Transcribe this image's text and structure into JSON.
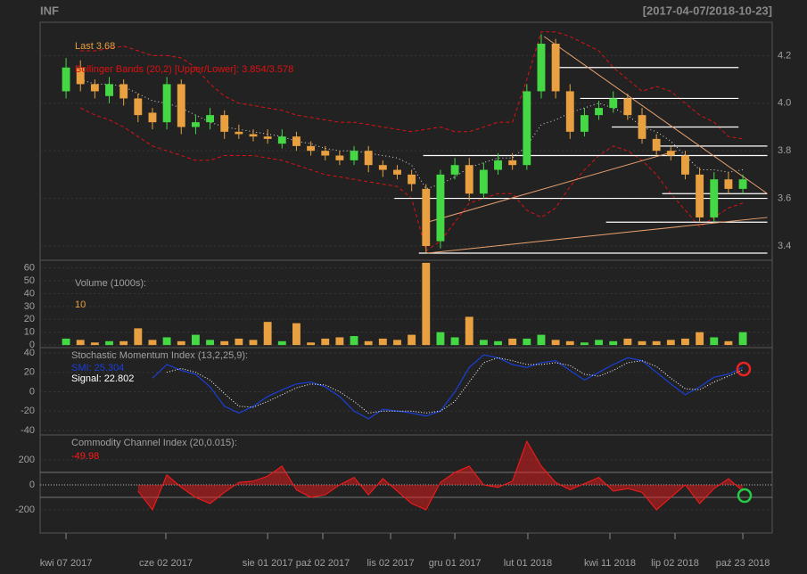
{
  "chart_data": {
    "type": "candlestick",
    "title": "INF",
    "subtitle": "[2017-04-07/2018-10-23]",
    "xlim": [
      -1.8,
      49.04
    ],
    "xticks": [
      {
        "value": 0,
        "label": "kwi 07 2017"
      },
      {
        "value": 6.93,
        "label": "cze 02 2017"
      },
      {
        "value": 14,
        "label": "sie 01 2017"
      },
      {
        "value": 17.83,
        "label": "paź 02 2017"
      },
      {
        "value": 22.54,
        "label": "lis 02 2017"
      },
      {
        "value": 27,
        "label": "gru 01 2017"
      },
      {
        "value": 32.07,
        "label": "lut 01 2018"
      },
      {
        "value": 37.77,
        "label": "kwi 11 2018"
      },
      {
        "value": 42.29,
        "label": "lip 02 2018"
      },
      {
        "value": 47,
        "label": "paź 23 2018"
      }
    ],
    "grid": true,
    "price": {
      "ylim": [
        3.34,
        4.34
      ],
      "yticks": [
        3.4,
        3.6,
        3.8,
        {
          "value": 4,
          "label": "4.0"
        },
        4.2
      ],
      "up_color": "#44d844",
      "down_color": "#e8a040",
      "last_label": "Last 3.68",
      "bb_label": "Bollinger Bands (20,2) [Upper/Lower]: 3.854/3.578",
      "bb_color": "#dd1111",
      "mid_color": "#dddddd",
      "open": [
        4.05,
        4.15,
        4.08,
        4.03,
        4.08,
        4.02,
        3.96,
        3.92,
        4.08,
        3.9,
        3.92,
        3.95,
        3.88,
        3.87,
        3.86,
        3.83,
        3.86,
        3.82,
        3.8,
        3.78,
        3.76,
        3.8,
        3.74,
        3.72,
        3.7,
        3.64,
        3.42,
        3.7,
        3.74,
        3.62,
        3.72,
        3.76,
        3.74,
        4.05,
        4.25,
        4.05,
        3.88,
        3.95,
        3.98,
        4.02,
        3.95,
        3.85,
        3.8,
        3.78,
        3.7,
        3.52,
        3.68,
        3.64
      ],
      "high": [
        4.19,
        4.18,
        4.1,
        4.11,
        4.1,
        4.04,
        3.98,
        4.11,
        4.1,
        3.95,
        3.98,
        3.97,
        3.91,
        3.89,
        3.89,
        3.89,
        3.88,
        3.84,
        3.82,
        3.8,
        3.82,
        3.82,
        3.76,
        3.74,
        3.72,
        3.66,
        3.72,
        3.77,
        3.77,
        3.75,
        3.79,
        3.79,
        4.08,
        4.29,
        4.27,
        4.08,
        3.98,
        4.01,
        4.05,
        4.04,
        3.98,
        3.87,
        3.82,
        3.8,
        3.73,
        3.71,
        3.71,
        3.7
      ],
      "low": [
        4.02,
        4.05,
        4.02,
        4.0,
        3.99,
        3.92,
        3.89,
        3.89,
        3.87,
        3.87,
        3.89,
        3.85,
        3.85,
        3.84,
        3.83,
        3.81,
        3.8,
        3.78,
        3.76,
        3.74,
        3.74,
        3.71,
        3.69,
        3.68,
        3.63,
        3.37,
        3.39,
        3.68,
        3.59,
        3.6,
        3.7,
        3.72,
        3.72,
        4.02,
        4.02,
        3.85,
        3.86,
        3.93,
        3.96,
        3.93,
        3.83,
        3.78,
        3.76,
        3.68,
        3.5,
        3.5,
        3.62,
        3.62
      ],
      "close": [
        4.15,
        4.08,
        4.05,
        4.08,
        4.02,
        3.95,
        3.92,
        4.08,
        3.9,
        3.92,
        3.95,
        3.88,
        3.87,
        3.86,
        3.85,
        3.86,
        3.82,
        3.8,
        3.78,
        3.76,
        3.8,
        3.74,
        3.72,
        3.7,
        3.66,
        3.4,
        3.7,
        3.74,
        3.62,
        3.72,
        3.76,
        3.74,
        4.05,
        4.25,
        4.05,
        3.88,
        3.95,
        3.98,
        4.02,
        3.95,
        3.85,
        3.8,
        3.78,
        3.7,
        3.52,
        3.68,
        3.64,
        3.68
      ],
      "bb_upper": [
        null,
        4.22,
        4.22,
        4.23,
        4.24,
        4.22,
        4.2,
        4.2,
        4.19,
        4.15,
        4.08,
        4.03,
        4.0,
        3.99,
        3.98,
        3.97,
        3.95,
        3.94,
        3.93,
        3.92,
        3.92,
        3.91,
        3.9,
        3.89,
        3.88,
        3.89,
        3.9,
        3.88,
        3.88,
        3.9,
        3.92,
        3.92,
        4.1,
        4.3,
        4.3,
        4.28,
        4.25,
        4.22,
        4.15,
        4.1,
        4.05,
        4.07,
        4.05,
        4.0,
        3.95,
        3.92,
        3.86,
        3.85
      ],
      "bb_lower": [
        null,
        3.98,
        3.95,
        3.93,
        3.9,
        3.86,
        3.82,
        3.8,
        3.78,
        3.76,
        3.76,
        3.78,
        3.78,
        3.78,
        3.77,
        3.76,
        3.74,
        3.72,
        3.7,
        3.69,
        3.68,
        3.67,
        3.66,
        3.65,
        3.6,
        3.38,
        3.42,
        3.5,
        3.58,
        3.6,
        3.62,
        3.62,
        3.55,
        3.52,
        3.56,
        3.65,
        3.72,
        3.78,
        3.82,
        3.8,
        3.76,
        3.7,
        3.62,
        3.55,
        3.48,
        3.52,
        3.56,
        3.58
      ],
      "bb_mid": [
        null,
        4.1,
        4.08,
        4.08,
        4.07,
        4.04,
        4.01,
        4.0,
        3.98,
        3.95,
        3.92,
        3.9,
        3.89,
        3.88,
        3.87,
        3.86,
        3.84,
        3.83,
        3.81,
        3.8,
        3.8,
        3.79,
        3.78,
        3.77,
        3.74,
        3.64,
        3.66,
        3.69,
        3.73,
        3.75,
        3.77,
        3.77,
        3.82,
        3.91,
        3.93,
        3.96,
        3.98,
        4.0,
        3.98,
        3.95,
        3.9,
        3.88,
        3.84,
        3.78,
        3.72,
        3.72,
        3.71,
        3.72
      ],
      "level_color": "#ffffff",
      "levels": [
        {
          "y": 4.15,
          "x": [
            33.8,
            46.7
          ]
        },
        {
          "y": 4.02,
          "x": [
            35.7,
            46.7
          ]
        },
        {
          "y": 3.9,
          "x": [
            37.9,
            46.7
          ]
        },
        {
          "y": 3.82,
          "x": [
            41.2,
            48.7
          ]
        },
        {
          "y": 3.78,
          "x": [
            24.8,
            48.7
          ]
        },
        {
          "y": 3.62,
          "x": [
            41.4,
            48.7
          ]
        },
        {
          "y": 3.6,
          "x": [
            22.8,
            48.7
          ]
        },
        {
          "y": 3.5,
          "x": [
            37.5,
            48.7
          ]
        },
        {
          "y": 3.37,
          "x": [
            24.5,
            48.7
          ]
        }
      ],
      "trend_color": "#e8a070",
      "trendlines": [
        {
          "x": [
            33.2,
            48.7
          ],
          "y": [
            4.28,
            3.62
          ]
        },
        {
          "x": [
            25.1,
            42.4
          ],
          "y": [
            3.5,
            3.8
          ]
        },
        {
          "x": [
            25.1,
            48.7
          ],
          "y": [
            3.37,
            3.52
          ]
        }
      ]
    },
    "volume": {
      "label": "Volume (1000s):",
      "last_label": "10",
      "ylim": [
        -2,
        66
      ],
      "yticks": [
        0,
        10,
        20,
        30,
        40,
        50,
        60
      ],
      "values": [
        5,
        4,
        2,
        3,
        3,
        13,
        4,
        6,
        3,
        8,
        4,
        3,
        5,
        4,
        18,
        3,
        17,
        2,
        5,
        6,
        7,
        3,
        5,
        4,
        8,
        64,
        10,
        6,
        22,
        4,
        3,
        5,
        5,
        8,
        4,
        3,
        2,
        4,
        3,
        5,
        3,
        3,
        4,
        5,
        10,
        6,
        3,
        10
      ]
    },
    "smi": {
      "label": "Stochastic Momentum Index (13,2,25,9):",
      "ylim": [
        -44.6,
        45.5
      ],
      "yticks": [
        -40,
        -20,
        0,
        20,
        40
      ],
      "series": [
        {
          "name": "SMI: 25.304",
          "color": "#1a3fd8",
          "values": [
            null,
            null,
            null,
            null,
            null,
            null,
            14,
            28,
            22,
            18,
            5,
            -15,
            -22,
            -15,
            -5,
            2,
            8,
            10,
            5,
            -5,
            -20,
            -28,
            -18,
            -20,
            -22,
            -25,
            -20,
            0,
            25,
            38,
            35,
            28,
            25,
            30,
            32,
            22,
            12,
            20,
            28,
            35,
            32,
            20,
            8,
            -3,
            5,
            15,
            18,
            25.304
          ]
        },
        {
          "name": "Signal: 22.802",
          "color": "#ffffff",
          "values": [
            null,
            null,
            null,
            null,
            null,
            null,
            null,
            20,
            24,
            20,
            12,
            -2,
            -15,
            -16,
            -10,
            -3,
            4,
            8,
            7,
            0,
            -10,
            -22,
            -20,
            -20,
            -20,
            -22,
            -20,
            -10,
            10,
            30,
            35,
            32,
            28,
            28,
            30,
            27,
            18,
            16,
            22,
            30,
            32,
            26,
            14,
            3,
            2,
            10,
            16,
            22.802
          ]
        }
      ]
    },
    "cci": {
      "label": "Commodity Channel Index (20,0.015):",
      "value_label": "-49.98",
      "ylim": [
        -386,
        400
      ],
      "yticks": [
        -200,
        0,
        200
      ],
      "bands": [
        -100,
        100
      ],
      "color": "#ff1a1a",
      "values": [
        null,
        null,
        null,
        null,
        null,
        -50,
        -200,
        80,
        -20,
        -100,
        -150,
        -60,
        20,
        30,
        70,
        150,
        -40,
        -100,
        -80,
        0,
        60,
        -80,
        50,
        -50,
        -150,
        -200,
        20,
        100,
        150,
        0,
        -20,
        30,
        350,
        150,
        20,
        -40,
        10,
        60,
        -50,
        -30,
        -60,
        -200,
        -100,
        0,
        -150,
        -30,
        50,
        -49.98
      ]
    }
  }
}
